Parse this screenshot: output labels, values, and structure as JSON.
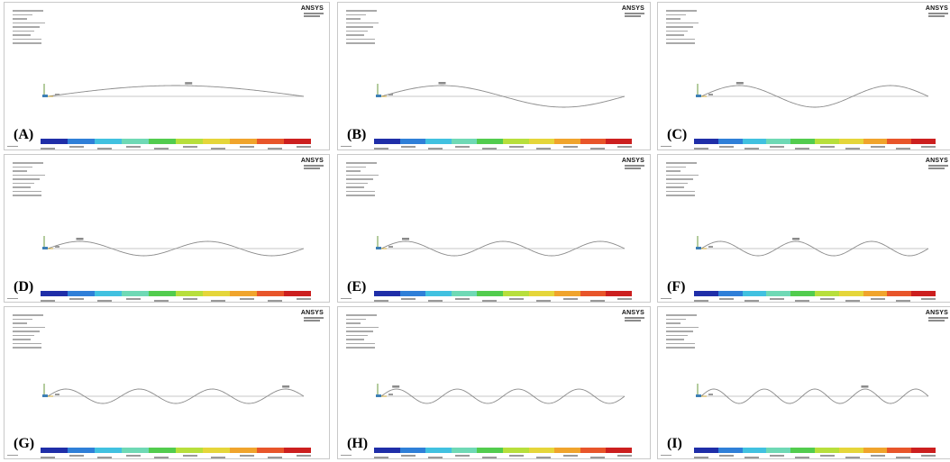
{
  "brand": "ANSYS",
  "panels": [
    {
      "label": "(A)",
      "half_waves": 1,
      "max_at": 0.55
    },
    {
      "label": "(B)",
      "half_waves": 2,
      "max_at": 0.25
    },
    {
      "label": "(C)",
      "half_waves": 3,
      "max_at": 0.17
    },
    {
      "label": "(D)",
      "half_waves": 4,
      "max_at": 0.125
    },
    {
      "label": "(E)",
      "half_waves": 5,
      "max_at": 0.1
    },
    {
      "label": "(F)",
      "half_waves": 6,
      "max_at": 0.417
    },
    {
      "label": "(G)",
      "half_waves": 7,
      "max_at": 0.93
    },
    {
      "label": "(H)",
      "half_waves": 8,
      "max_at": 0.06
    },
    {
      "label": "(I)",
      "half_waves": 9,
      "max_at": 0.72
    }
  ],
  "colors": {
    "contour_scale": [
      "#1f2ea8",
      "#2f7fd8",
      "#41c1e0",
      "#6fd9b5",
      "#52cc4e",
      "#b7df3c",
      "#e5d63a",
      "#f0a42c",
      "#e8552a",
      "#cc1f1f"
    ],
    "wave": "#8a8a8a",
    "baseline": "#b5b5b5"
  }
}
